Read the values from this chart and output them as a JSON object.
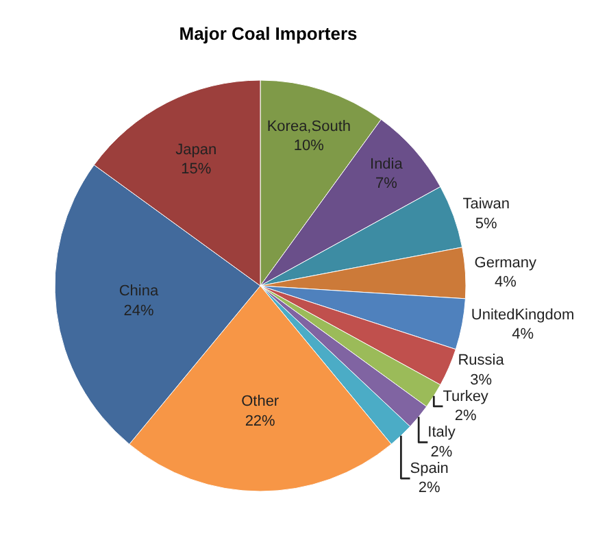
{
  "chart_data": {
    "type": "pie",
    "title": "Major Coal Importers",
    "categories": [
      "Korea,South",
      "India",
      "Taiwan",
      "Germany",
      "UnitedKingdom",
      "Russia",
      "Turkey",
      "Italy",
      "Spain",
      "Other",
      "China",
      "Japan"
    ],
    "values": [
      10,
      7,
      5,
      4,
      4,
      3,
      2,
      2,
      2,
      22,
      24,
      15
    ],
    "colors": [
      "#7f9a48",
      "#6a4f8a",
      "#3d8ca3",
      "#cc7a39",
      "#4f81bd",
      "#c0504d",
      "#9bbb59",
      "#8064a2",
      "#4bacc6",
      "#f79646",
      "#426a9c",
      "#9c3f3c"
    ],
    "value_labels": [
      "10%",
      "7%",
      "5%",
      "4%",
      "4%",
      "3%",
      "2%",
      "2%",
      "2%",
      "22%",
      "24%",
      "15%"
    ],
    "legend": false
  }
}
